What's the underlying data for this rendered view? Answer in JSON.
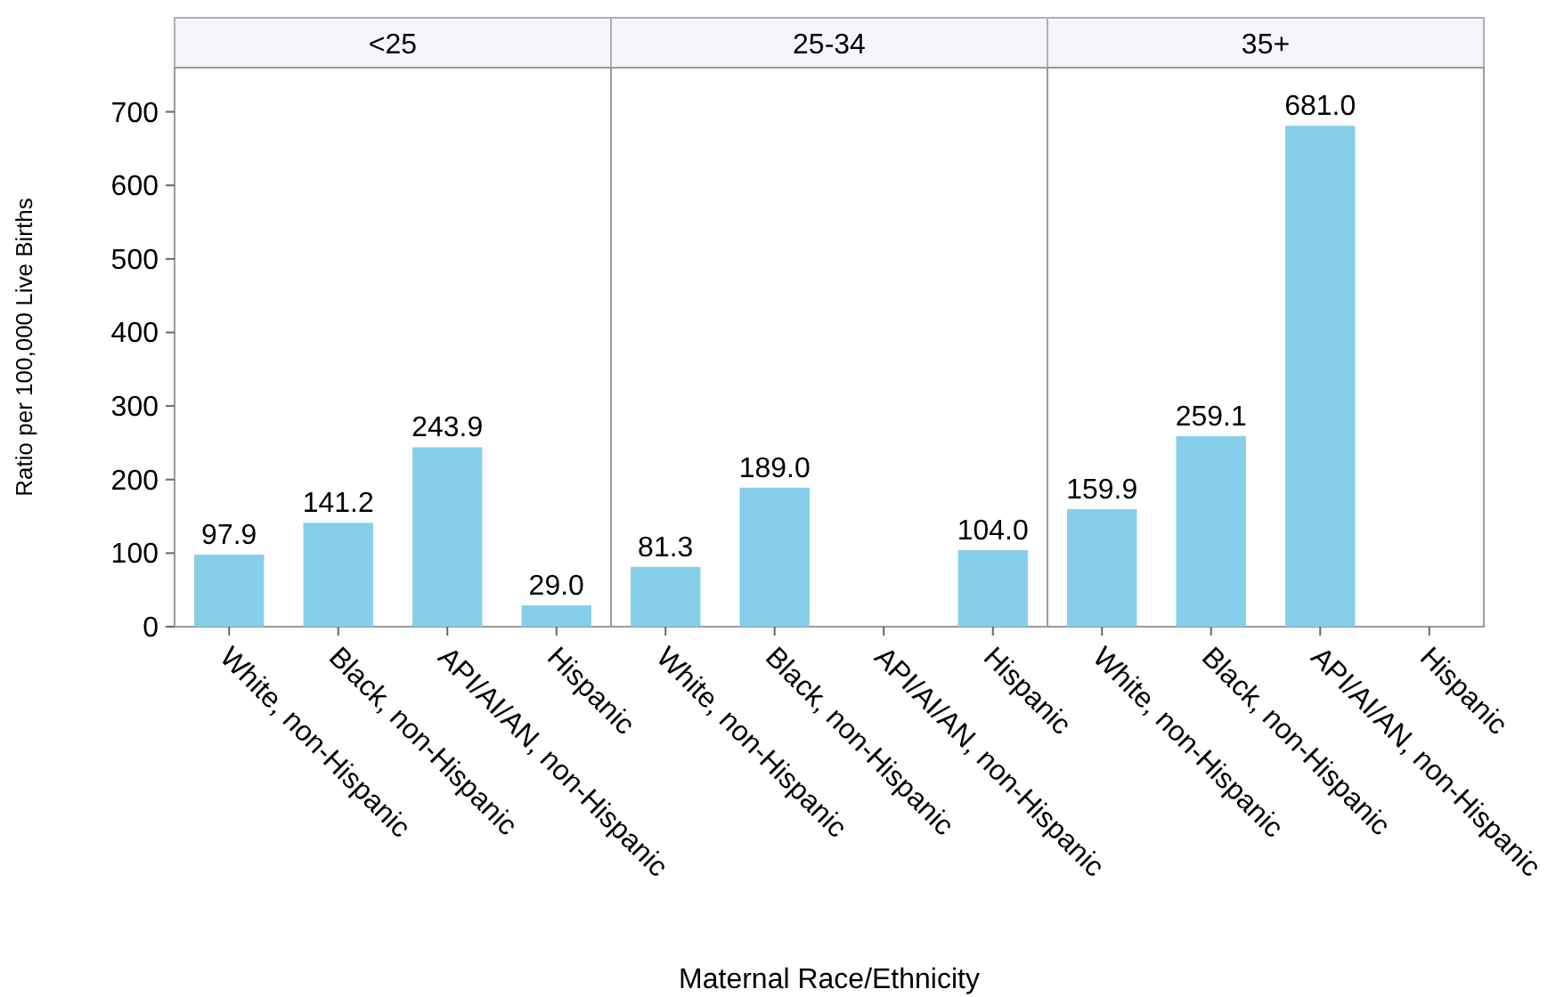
{
  "chart_data": [
    {
      "type": "bar",
      "title": "<25",
      "ylabel": "Ratio per 100,000 Live Births",
      "categories": [
        "White, non-Hispanic",
        "Black, non-Hispanic",
        "API/AI/AN, non-Hispanic",
        "Hispanic"
      ],
      "values": [
        97.9,
        141.2,
        243.9,
        29.0
      ],
      "value_labels": [
        "97.9",
        "141.2",
        "243.9",
        "29.0"
      ],
      "color": "#87ceeb",
      "ylim": [
        0,
        760
      ],
      "yticks": [
        0,
        100,
        200,
        300,
        400,
        500,
        600,
        700
      ]
    },
    {
      "type": "bar",
      "title": "25-34",
      "xlabel": "Maternal Race/Ethnicity",
      "categories": [
        "White, non-Hispanic",
        "Black, non-Hispanic",
        "API/AI/AN, non-Hispanic",
        "Hispanic"
      ],
      "values": [
        81.3,
        189.0,
        null,
        104.0
      ],
      "value_labels": [
        "81.3",
        "189.0",
        null,
        "104.0"
      ],
      "color": "#87ceeb",
      "ylim": [
        0,
        760
      ],
      "tick_labels": "x"
    },
    {
      "type": "bar",
      "title": "35+",
      "categories": [
        "White, non-Hispanic",
        "Black, non-Hispanic",
        "API/AI/AN, non-Hispanic",
        "Hispanic"
      ],
      "values": [
        159.9,
        259.1,
        681.0,
        null
      ],
      "value_labels": [
        "159.9",
        "259.1",
        "681.0",
        null
      ],
      "color": "#87ceeb",
      "ylim": [
        0,
        760
      ],
      "tick_labels": "x"
    }
  ]
}
